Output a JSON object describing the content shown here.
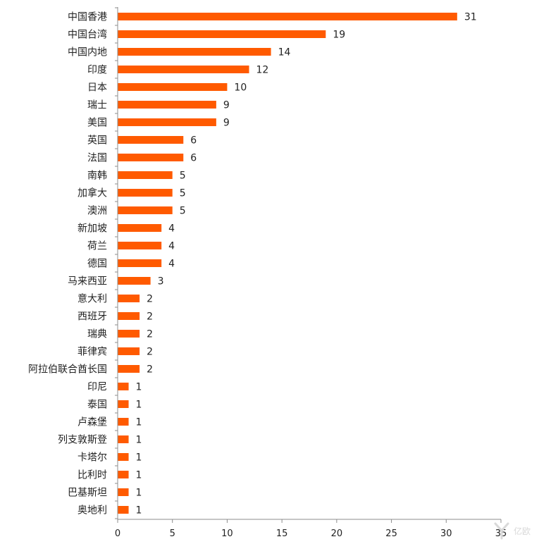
{
  "chart_data": {
    "type": "bar",
    "orientation": "horizontal",
    "categories": [
      "中国香港",
      "中国台湾",
      "中国内地",
      "印度",
      "日本",
      "瑞士",
      "美国",
      "英国",
      "法国",
      "南韩",
      "加拿大",
      "澳洲",
      "新加坡",
      "荷兰",
      "德国",
      "马来西亚",
      "意大利",
      "西班牙",
      "瑞典",
      "菲律宾",
      "阿拉伯联合酋长国",
      "印尼",
      "泰国",
      "卢森堡",
      "列支敦斯登",
      "卡塔尔",
      "比利时",
      "巴基斯坦",
      "奥地利"
    ],
    "values": [
      31,
      19,
      14,
      12,
      10,
      9,
      9,
      6,
      6,
      5,
      5,
      5,
      4,
      4,
      4,
      3,
      2,
      2,
      2,
      2,
      2,
      1,
      1,
      1,
      1,
      1,
      1,
      1,
      1
    ],
    "xlim": [
      0,
      35
    ],
    "xticks": [
      0,
      5,
      10,
      15,
      20,
      25,
      30,
      35
    ],
    "data_labels": true,
    "grid": false,
    "bar_color": "#ff5a00",
    "title": "",
    "xlabel": "",
    "ylabel": ""
  },
  "watermark": {
    "icon": "logo-y-icon",
    "text": "亿欧"
  }
}
